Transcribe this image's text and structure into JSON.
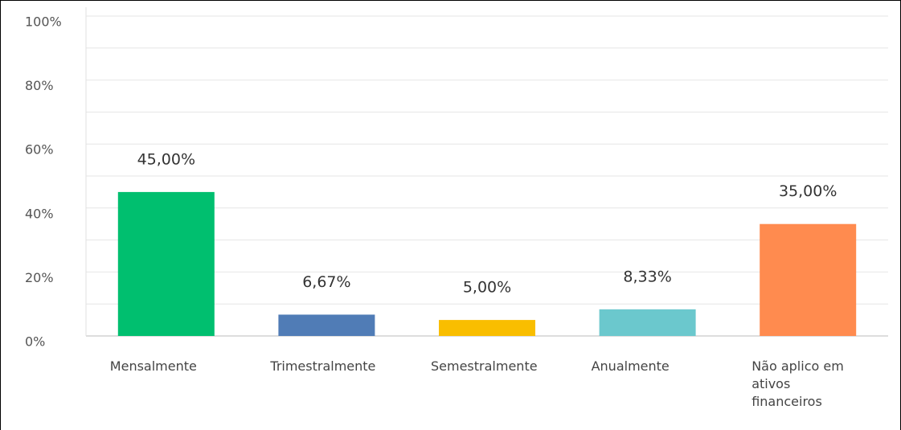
{
  "chart_data": {
    "type": "bar",
    "categories": [
      "Mensalmente",
      "Trimestralmente",
      "Semestralmente",
      "Anualmente",
      "Não aplico em ativos financeiros"
    ],
    "values": [
      45.0,
      6.67,
      5.0,
      8.33,
      35.0
    ],
    "value_labels": [
      "45,00%",
      "6,67%",
      "5,00%",
      "8,33%",
      "35,00%"
    ],
    "colors": [
      "#00bf6f",
      "#507cb6",
      "#f9be00",
      "#6bc8cd",
      "#ff8b4f"
    ],
    "ylim": [
      0,
      100
    ],
    "yticks": [
      {
        "value": 0,
        "label": "0%"
      },
      {
        "value": 20,
        "label": "20%"
      },
      {
        "value": 40,
        "label": "40%"
      },
      {
        "value": 60,
        "label": "60%"
      },
      {
        "value": 80,
        "label": "80%"
      },
      {
        "value": 100,
        "label": "100%"
      }
    ],
    "minor_yticks": [
      10,
      30,
      50,
      70,
      90
    ],
    "grid": true
  }
}
